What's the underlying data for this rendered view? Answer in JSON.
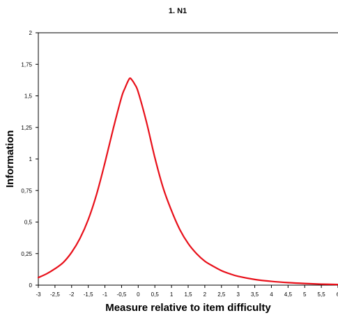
{
  "chart_data": {
    "type": "line",
    "title": "1. N1",
    "xlabel": "Measure relative to item difficulty",
    "ylabel": "Information",
    "xlim": [
      -3,
      6
    ],
    "ylim": [
      0,
      2
    ],
    "x_ticks": [
      -3,
      -2.5,
      -2,
      -1.5,
      -1,
      -0.5,
      0,
      0.5,
      1,
      1.5,
      2,
      2.5,
      3,
      3.5,
      4,
      4.5,
      5,
      5.5,
      6
    ],
    "x_tick_labels": [
      "-3",
      "-2,5",
      "-2",
      "-1,5",
      "-1",
      "-0,5",
      "0",
      "0,5",
      "1",
      "1,5",
      "2",
      "2,5",
      "3",
      "3,5",
      "4",
      "4,5",
      "5",
      "5,5",
      "6"
    ],
    "y_ticks": [
      0,
      0.25,
      0.5,
      0.75,
      1,
      1.25,
      1.5,
      1.75,
      2
    ],
    "y_tick_labels": [
      "0",
      "0,25",
      "0,5",
      "0,75",
      "1",
      "1,25",
      "1,5",
      "1,75",
      "2"
    ],
    "grid": false,
    "legend": "none",
    "series": [
      {
        "color": "#e8101a",
        "x": [
          -3,
          -2.75,
          -2.5,
          -2.25,
          -2,
          -1.75,
          -1.5,
          -1.25,
          -1,
          -0.75,
          -0.5,
          -0.4,
          -0.3,
          -0.25,
          -0.2,
          -0.1,
          0,
          0.25,
          0.5,
          0.75,
          1,
          1.25,
          1.5,
          1.75,
          2,
          2.25,
          2.5,
          2.75,
          3,
          3.5,
          4,
          4.5,
          5,
          5.5,
          6
        ],
        "y": [
          0.06,
          0.09,
          0.13,
          0.18,
          0.26,
          0.37,
          0.52,
          0.72,
          0.97,
          1.24,
          1.49,
          1.56,
          1.62,
          1.64,
          1.63,
          1.59,
          1.53,
          1.29,
          1.01,
          0.77,
          0.59,
          0.44,
          0.33,
          0.25,
          0.19,
          0.15,
          0.115,
          0.09,
          0.07,
          0.045,
          0.03,
          0.02,
          0.013,
          0.008,
          0.005
        ]
      }
    ]
  }
}
